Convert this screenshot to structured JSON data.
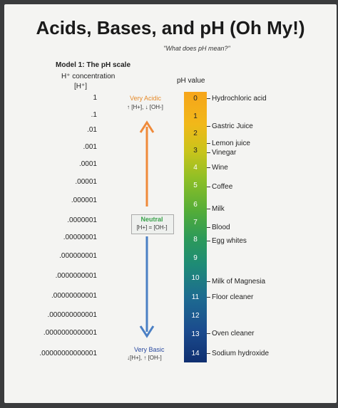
{
  "title": "Acids, Bases, and pH (Oh My!)",
  "subtitle": "\"What does pH mean?\"",
  "model_label": "Model 1: The pH scale",
  "h_concentration_label": "H⁺ concentration",
  "h_symbol": "[H⁺]",
  "ph_value_label": "pH value",
  "concentrations": [
    "1",
    ".1",
    ".01",
    ".001",
    ".0001",
    ".00001",
    ".000001",
    ".0000001",
    ".00000001",
    ".000000001",
    ".0000000001",
    ".00000000001",
    ".000000000001",
    ".0000000000001",
    ".00000000000001"
  ],
  "ph_numbers": [
    "0",
    "1",
    "2",
    "3",
    "4",
    "5",
    "6",
    "7",
    "8",
    "9",
    "10",
    "11",
    "12",
    "13",
    "14"
  ],
  "substances": {
    "hydrochloric": "Hydrochloric acid",
    "gastric": "Gastric Juice",
    "lemon": "Lemon juice",
    "vinegar": "Vinegar",
    "wine": "Wine",
    "coffee": "Coffee",
    "milk": "Milk",
    "blood": "Blood",
    "egg": "Egg whites",
    "magnesia": "Milk of Magnesia",
    "floor": "Floor cleaner",
    "oven": "Oven cleaner",
    "sodium": "Sodium hydroxide"
  },
  "very_acidic": "Very Acidic",
  "acidic_sub": "↑ [H+], ↓ [OH-]",
  "neutral": "Neutral",
  "neutral_sub": "[H+] = [OH-]",
  "very_basic": "Very Basic",
  "basic_sub": "↓[H+], ↑ [OH-]",
  "colors": {
    "acid_arrow": "#ef8a3a",
    "base_arrow": "#4a7fc4"
  }
}
